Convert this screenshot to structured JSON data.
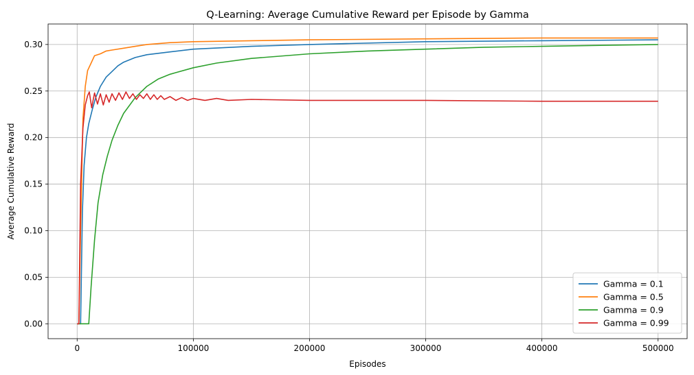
{
  "chart_data": {
    "type": "line",
    "title": "Q-Learning: Average Cumulative Reward per Episode by Gamma",
    "xlabel": "Episodes",
    "ylabel": "Average Cumulative Reward",
    "xlim": [
      -25000,
      525000
    ],
    "ylim": [
      -0.016,
      0.322
    ],
    "xticks": [
      0,
      100000,
      200000,
      300000,
      400000,
      500000
    ],
    "xtick_labels": [
      "0",
      "100000",
      "200000",
      "300000",
      "400000",
      "500000"
    ],
    "yticks": [
      0.0,
      0.05,
      0.1,
      0.15,
      0.2,
      0.25,
      0.3
    ],
    "ytick_labels": [
      "0.00",
      "0.05",
      "0.10",
      "0.15",
      "0.20",
      "0.25",
      "0.30"
    ],
    "grid": true,
    "legend_position": "lower-right",
    "series": [
      {
        "name": "Gamma = 0.1",
        "color": "#1f77b4",
        "x": [
          0,
          2500,
          3000,
          4500,
          6000,
          8000,
          10000,
          13000,
          16000,
          20000,
          25000,
          30000,
          35000,
          40000,
          50000,
          60000,
          80000,
          100000,
          150000,
          200000,
          300000,
          400000,
          500000
        ],
        "y": [
          0,
          0,
          0.0,
          0.12,
          0.17,
          0.2,
          0.215,
          0.23,
          0.243,
          0.255,
          0.265,
          0.271,
          0.277,
          0.281,
          0.286,
          0.289,
          0.292,
          0.295,
          0.298,
          0.3,
          0.303,
          0.304,
          0.305
        ]
      },
      {
        "name": "Gamma = 0.5",
        "color": "#ff7f0e",
        "x": [
          0,
          1500,
          3000,
          5000,
          7000,
          9000,
          12000,
          15000,
          20000,
          25000,
          30000,
          40000,
          50000,
          60000,
          80000,
          100000,
          150000,
          200000,
          300000,
          400000,
          500000
        ],
        "y": [
          0,
          0.0,
          0.1,
          0.22,
          0.255,
          0.272,
          0.28,
          0.288,
          0.29,
          0.293,
          0.294,
          0.296,
          0.298,
          0.3,
          0.302,
          0.303,
          0.304,
          0.305,
          0.306,
          0.307,
          0.307
        ]
      },
      {
        "name": "Gamma = 0.9",
        "color": "#2ca02c",
        "x": [
          0,
          9000,
          10000,
          12000,
          15000,
          18000,
          22000,
          26000,
          30000,
          35000,
          40000,
          50000,
          60000,
          70000,
          80000,
          100000,
          120000,
          150000,
          200000,
          250000,
          300000,
          350000,
          400000,
          450000,
          500000
        ],
        "y": [
          0,
          0,
          0.0,
          0.04,
          0.09,
          0.13,
          0.16,
          0.18,
          0.197,
          0.213,
          0.226,
          0.243,
          0.255,
          0.263,
          0.268,
          0.275,
          0.28,
          0.285,
          0.29,
          0.293,
          0.295,
          0.297,
          0.298,
          0.299,
          0.3
        ]
      },
      {
        "name": "Gamma = 0.99",
        "color": "#d62728",
        "x": [
          0,
          1500,
          3000,
          5000,
          7000,
          9000,
          10500,
          12500,
          15000,
          17500,
          20000,
          22500,
          25000,
          27500,
          30000,
          33000,
          36000,
          39000,
          42000,
          45000,
          48000,
          51000,
          54000,
          57000,
          60000,
          63000,
          66000,
          69000,
          72000,
          75000,
          80000,
          85000,
          90000,
          95000,
          100000,
          110000,
          120000,
          130000,
          150000,
          200000,
          300000,
          400000,
          500000
        ],
        "y": [
          0,
          0.0,
          0.15,
          0.21,
          0.235,
          0.245,
          0.249,
          0.232,
          0.248,
          0.236,
          0.247,
          0.235,
          0.246,
          0.238,
          0.247,
          0.24,
          0.248,
          0.241,
          0.249,
          0.242,
          0.247,
          0.241,
          0.246,
          0.242,
          0.247,
          0.241,
          0.246,
          0.241,
          0.245,
          0.241,
          0.244,
          0.24,
          0.243,
          0.24,
          0.242,
          0.24,
          0.242,
          0.24,
          0.241,
          0.24,
          0.24,
          0.239,
          0.239
        ]
      }
    ]
  }
}
